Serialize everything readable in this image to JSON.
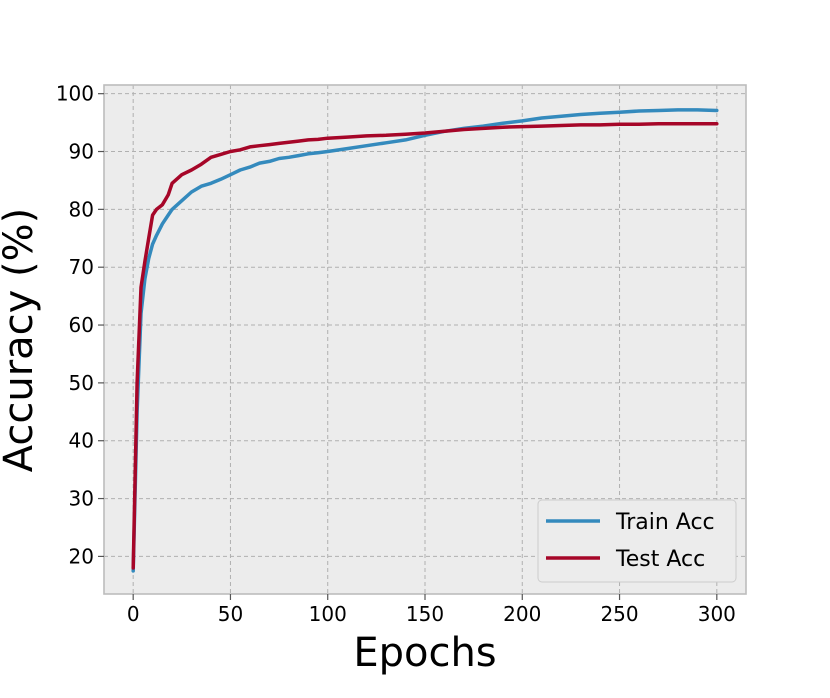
{
  "chart_data": {
    "type": "line",
    "xlabel": "Epochs",
    "ylabel": "Accuracy (%)",
    "xlim": [
      -15,
      315
    ],
    "ylim": [
      13.5,
      101.5
    ],
    "x_ticks": [
      0,
      50,
      100,
      150,
      200,
      250,
      300
    ],
    "y_ticks": [
      20,
      30,
      40,
      50,
      60,
      70,
      80,
      90,
      100
    ],
    "grid": true,
    "legend_position": "bottom-right",
    "colors": {
      "background": "#ececec",
      "grid": "#b0b0b0",
      "frame": "#bcbcbc"
    },
    "series": [
      {
        "name": "Train Acc",
        "color": "#348abd",
        "x": [
          0,
          2,
          4,
          6,
          8,
          10,
          12,
          15,
          18,
          20,
          25,
          30,
          35,
          40,
          45,
          50,
          55,
          60,
          65,
          70,
          75,
          80,
          85,
          90,
          95,
          100,
          110,
          120,
          130,
          140,
          150,
          160,
          170,
          180,
          190,
          200,
          210,
          220,
          230,
          240,
          250,
          260,
          270,
          280,
          290,
          300
        ],
        "values": [
          17.5,
          45,
          62,
          68,
          71.5,
          74,
          75.5,
          77.5,
          79,
          80,
          81.5,
          83,
          84,
          84.5,
          85.2,
          86,
          86.8,
          87.3,
          88,
          88.3,
          88.8,
          89,
          89.3,
          89.6,
          89.8,
          90,
          90.5,
          91,
          91.5,
          92,
          92.8,
          93.5,
          94,
          94.4,
          94.9,
          95.3,
          95.8,
          96.1,
          96.4,
          96.6,
          96.8,
          97,
          97.1,
          97.2,
          97.2,
          97.1
        ]
      },
      {
        "name": "Test Acc",
        "color": "#a60628",
        "x": [
          0,
          2,
          4,
          6,
          8,
          10,
          12,
          15,
          18,
          20,
          25,
          30,
          35,
          40,
          45,
          50,
          55,
          60,
          65,
          70,
          75,
          80,
          85,
          90,
          95,
          100,
          110,
          120,
          130,
          140,
          150,
          160,
          170,
          180,
          190,
          200,
          210,
          220,
          230,
          240,
          250,
          260,
          270,
          280,
          290,
          300
        ],
        "values": [
          18,
          50,
          66.5,
          71,
          75,
          79,
          80,
          80.8,
          82.5,
          84.5,
          86,
          86.8,
          87.8,
          89,
          89.5,
          90,
          90.3,
          90.8,
          91,
          91.2,
          91.4,
          91.6,
          91.8,
          92,
          92.1,
          92.3,
          92.5,
          92.7,
          92.8,
          93,
          93.2,
          93.5,
          93.8,
          94,
          94.2,
          94.3,
          94.4,
          94.5,
          94.6,
          94.6,
          94.7,
          94.7,
          94.8,
          94.8,
          94.8,
          94.8
        ]
      }
    ]
  }
}
